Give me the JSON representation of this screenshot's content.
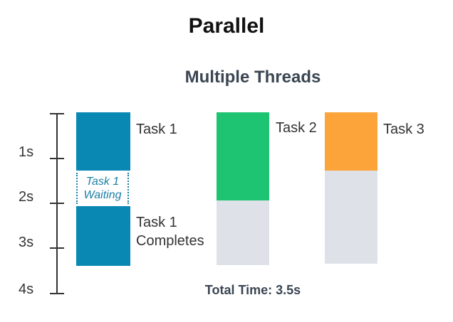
{
  "title": "Parallel",
  "subtitle": "Multiple Threads",
  "axis": {
    "labels": [
      "1s",
      "2s",
      "3s",
      "4s"
    ]
  },
  "tasks": {
    "task1_label": "Task 1",
    "task1_waiting": "Task 1\nWaiting",
    "task1_complete_label": "Task 1\nCompletes",
    "task2_label": "Task 2",
    "task3_label": "Task 3"
  },
  "colors": {
    "task1": "#0a88b4",
    "task2": "#1ec471",
    "task3": "#fca33a",
    "idle": "#dee2e8",
    "waiting": "#1a7fa6"
  },
  "footer": {
    "total_time": "Total  Time: 3.5s"
  }
}
